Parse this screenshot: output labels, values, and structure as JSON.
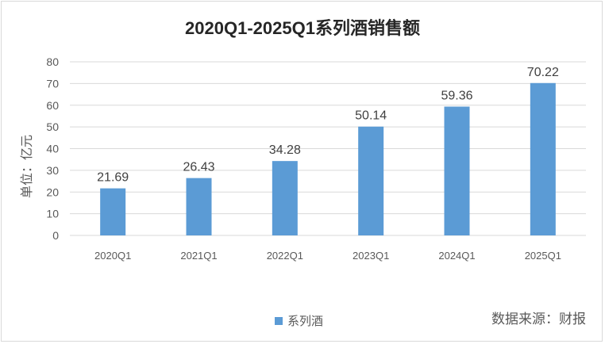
{
  "chart_data": {
    "type": "bar",
    "title": "2020Q1-2025Q1系列酒销售额",
    "ylabel": "单位：亿元",
    "xlabel": "",
    "categories": [
      "2020Q1",
      "2021Q1",
      "2022Q1",
      "2023Q1",
      "2024Q1",
      "2025Q1"
    ],
    "series": [
      {
        "name": "系列酒",
        "values": [
          21.69,
          26.43,
          34.28,
          50.14,
          59.36,
          70.22
        ],
        "color": "#5b9bd5"
      }
    ],
    "data_labels": [
      "21.69",
      "26.43",
      "34.28",
      "50.14",
      "59.36",
      "70.22"
    ],
    "ylim": [
      0,
      80
    ],
    "yticks": [
      0,
      10,
      20,
      30,
      40,
      50,
      60,
      70,
      80
    ],
    "grid": true,
    "legend": "bottom"
  },
  "footer": {
    "source": "数据来源：财报"
  }
}
